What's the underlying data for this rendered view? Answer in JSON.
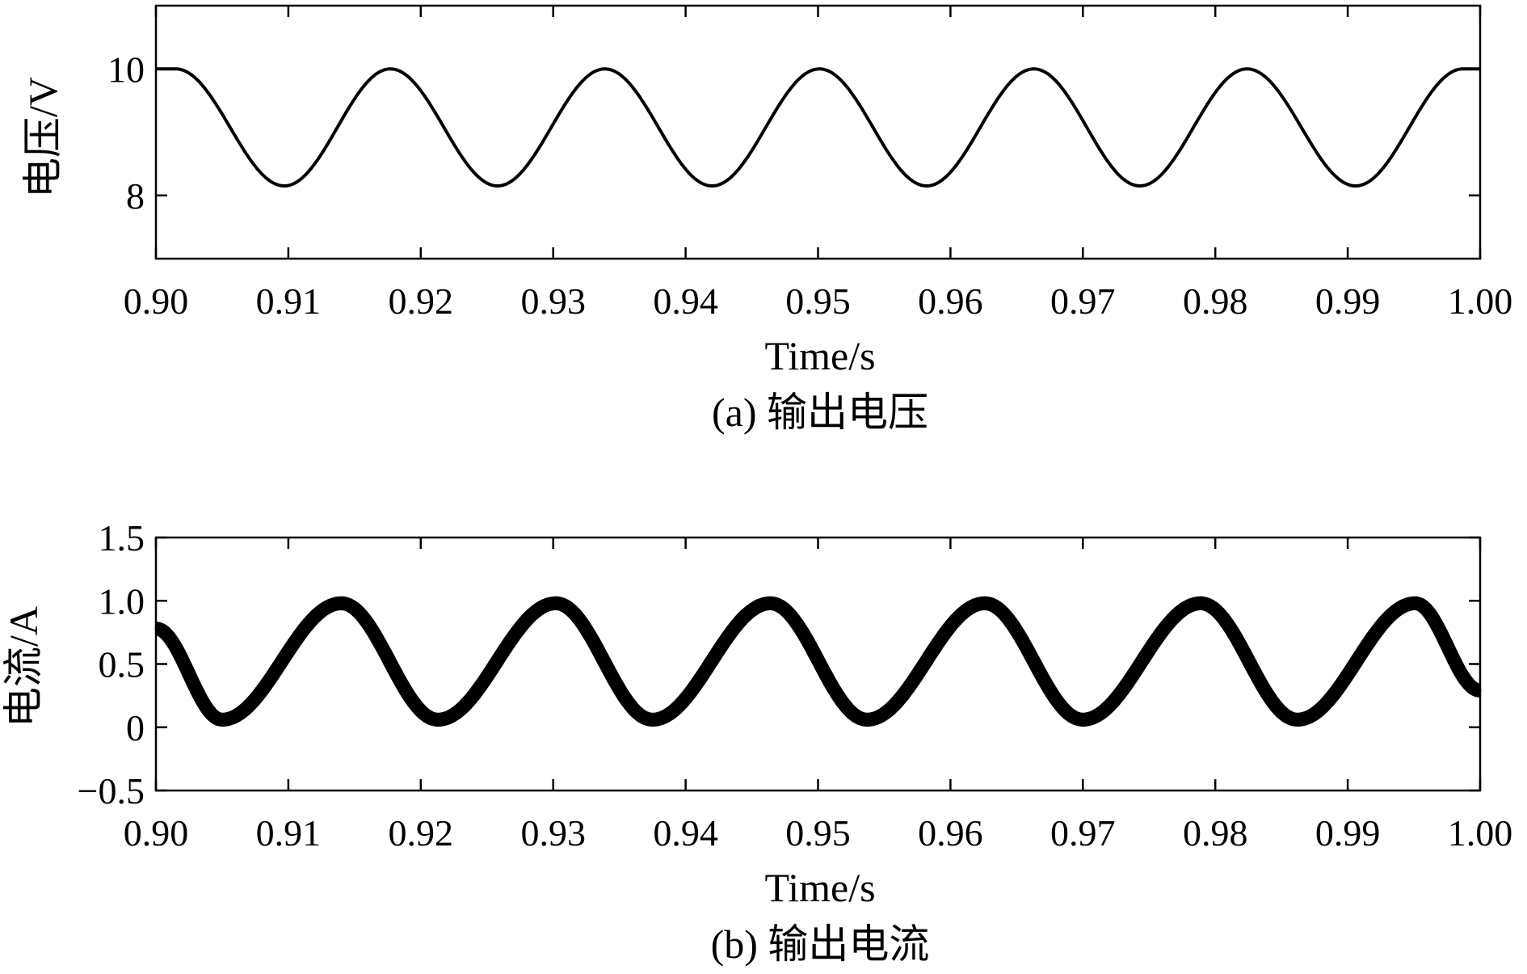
{
  "chart_data": [
    {
      "type": "line",
      "panel": "a",
      "caption": "(a) 输出电压",
      "xlabel": "Time/s",
      "ylabel": "电压/V",
      "xlim": [
        0.9,
        1.0
      ],
      "ylim": [
        7.0,
        11.0
      ],
      "x_ticks": [
        0.9,
        0.91,
        0.92,
        0.93,
        0.94,
        0.95,
        0.96,
        0.97,
        0.98,
        0.99,
        1.0
      ],
      "x_tick_labels": [
        "0.90",
        "0.91",
        "0.92",
        "0.93",
        "0.94",
        "0.95",
        "0.96",
        "0.97",
        "0.98",
        "0.99",
        "1.00"
      ],
      "y_ticks": [
        8,
        10
      ],
      "y_tick_labels": [
        "8",
        "10"
      ],
      "grid": false,
      "line_color": "#000000",
      "series": [
        {
          "x": [
            0.9015,
            0.9097,
            0.9177,
            0.9258,
            0.9339,
            0.942,
            0.9501,
            0.9582,
            0.9663,
            0.9743,
            0.9824,
            0.9906,
            0.9987
          ],
          "values": [
            10.0,
            8.15,
            10.0,
            8.15,
            10.0,
            8.15,
            10.0,
            8.15,
            10.0,
            8.15,
            10.0,
            8.15,
            10.0
          ]
        }
      ]
    },
    {
      "type": "line",
      "panel": "b",
      "caption": "(b) 输出电流",
      "xlabel": "Time/s",
      "ylabel": "电流/A",
      "xlim": [
        0.9,
        1.0
      ],
      "ylim": [
        -0.5,
        1.5
      ],
      "x_ticks": [
        0.9,
        0.91,
        0.92,
        0.93,
        0.94,
        0.95,
        0.96,
        0.97,
        0.98,
        0.99,
        1.0
      ],
      "x_tick_labels": [
        "0.90",
        "0.91",
        "0.92",
        "0.93",
        "0.94",
        "0.95",
        "0.96",
        "0.97",
        "0.98",
        "0.99",
        "1.00"
      ],
      "y_ticks": [
        -0.5,
        0,
        0.5,
        1.0,
        1.5
      ],
      "y_tick_labels": [
        "−0.5",
        "0",
        "0.5",
        "1.0",
        "1.5"
      ],
      "grid": false,
      "line_color": "#000000",
      "ripple_band": 0.11,
      "series": [
        {
          "x": [
            0.9,
            0.905,
            0.914,
            0.9213,
            0.9302,
            0.9375,
            0.9464,
            0.9537,
            0.9626,
            0.97,
            0.9789,
            0.9862,
            0.9951,
            1.0
          ],
          "values": [
            0.78,
            0.06,
            0.98,
            0.06,
            0.98,
            0.06,
            0.98,
            0.06,
            0.98,
            0.06,
            0.98,
            0.06,
            0.98,
            0.29
          ]
        }
      ]
    }
  ]
}
